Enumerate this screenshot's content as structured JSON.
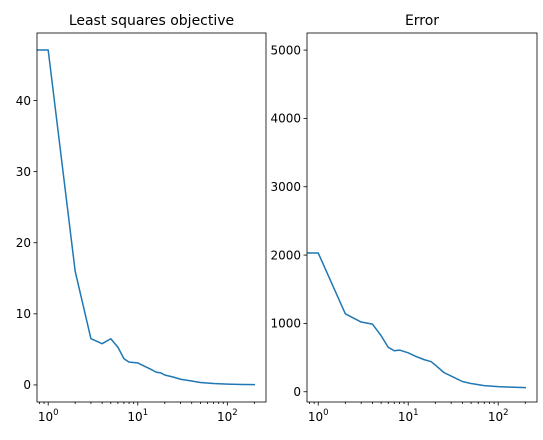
{
  "chart_data": [
    {
      "type": "line",
      "title": "Least squares objective",
      "xscale": "log",
      "xlim": [
        0.75,
        270
      ],
      "ylim": [
        -2.4,
        49.5
      ],
      "xticks": [
        {
          "value": 1,
          "base": "10",
          "exp": "0"
        },
        {
          "value": 10,
          "base": "10",
          "exp": "1"
        },
        {
          "value": 100,
          "base": "10",
          "exp": "2"
        }
      ],
      "yticks": [
        {
          "value": 0,
          "label": "0"
        },
        {
          "value": 10,
          "label": "10"
        },
        {
          "value": 20,
          "label": "20"
        },
        {
          "value": 30,
          "label": "30"
        },
        {
          "value": 40,
          "label": "40"
        }
      ],
      "grid": false,
      "series": [
        {
          "color": "#1f77b4",
          "x": [
            0.75,
            1,
            2,
            3,
            4,
            5,
            6,
            7,
            8,
            10,
            12,
            14,
            16,
            18,
            20,
            25,
            30,
            40,
            50,
            70,
            100,
            150,
            200
          ],
          "y": [
            47.1,
            47.1,
            16.0,
            6.5,
            5.8,
            6.5,
            5.3,
            3.7,
            3.2,
            3.1,
            2.6,
            2.2,
            1.8,
            1.7,
            1.4,
            1.1,
            0.8,
            0.55,
            0.35,
            0.2,
            0.12,
            0.07,
            0.05
          ]
        }
      ]
    },
    {
      "type": "line",
      "title": "Error",
      "xscale": "log",
      "xlim": [
        0.75,
        270
      ],
      "ylim": [
        -150,
        5250
      ],
      "xticks": [
        {
          "value": 1,
          "base": "10",
          "exp": "0"
        },
        {
          "value": 10,
          "base": "10",
          "exp": "1"
        },
        {
          "value": 100,
          "base": "10",
          "exp": "2"
        }
      ],
      "yticks": [
        {
          "value": 0,
          "label": "0"
        },
        {
          "value": 1000,
          "label": "1000"
        },
        {
          "value": 2000,
          "label": "2000"
        },
        {
          "value": 3000,
          "label": "3000"
        },
        {
          "value": 4000,
          "label": "4000"
        },
        {
          "value": 5000,
          "label": "5000"
        }
      ],
      "grid": false,
      "series": [
        {
          "color": "#1f77b4",
          "x": [
            0.75,
            1,
            2,
            3,
            4,
            5,
            6,
            7,
            8,
            10,
            12,
            15,
            18,
            20,
            25,
            30,
            40,
            50,
            70,
            100,
            150,
            200
          ],
          "y": [
            2030,
            2030,
            1140,
            1020,
            990,
            820,
            650,
            600,
            610,
            570,
            520,
            470,
            440,
            390,
            280,
            230,
            150,
            120,
            90,
            75,
            65,
            60
          ]
        }
      ]
    }
  ]
}
